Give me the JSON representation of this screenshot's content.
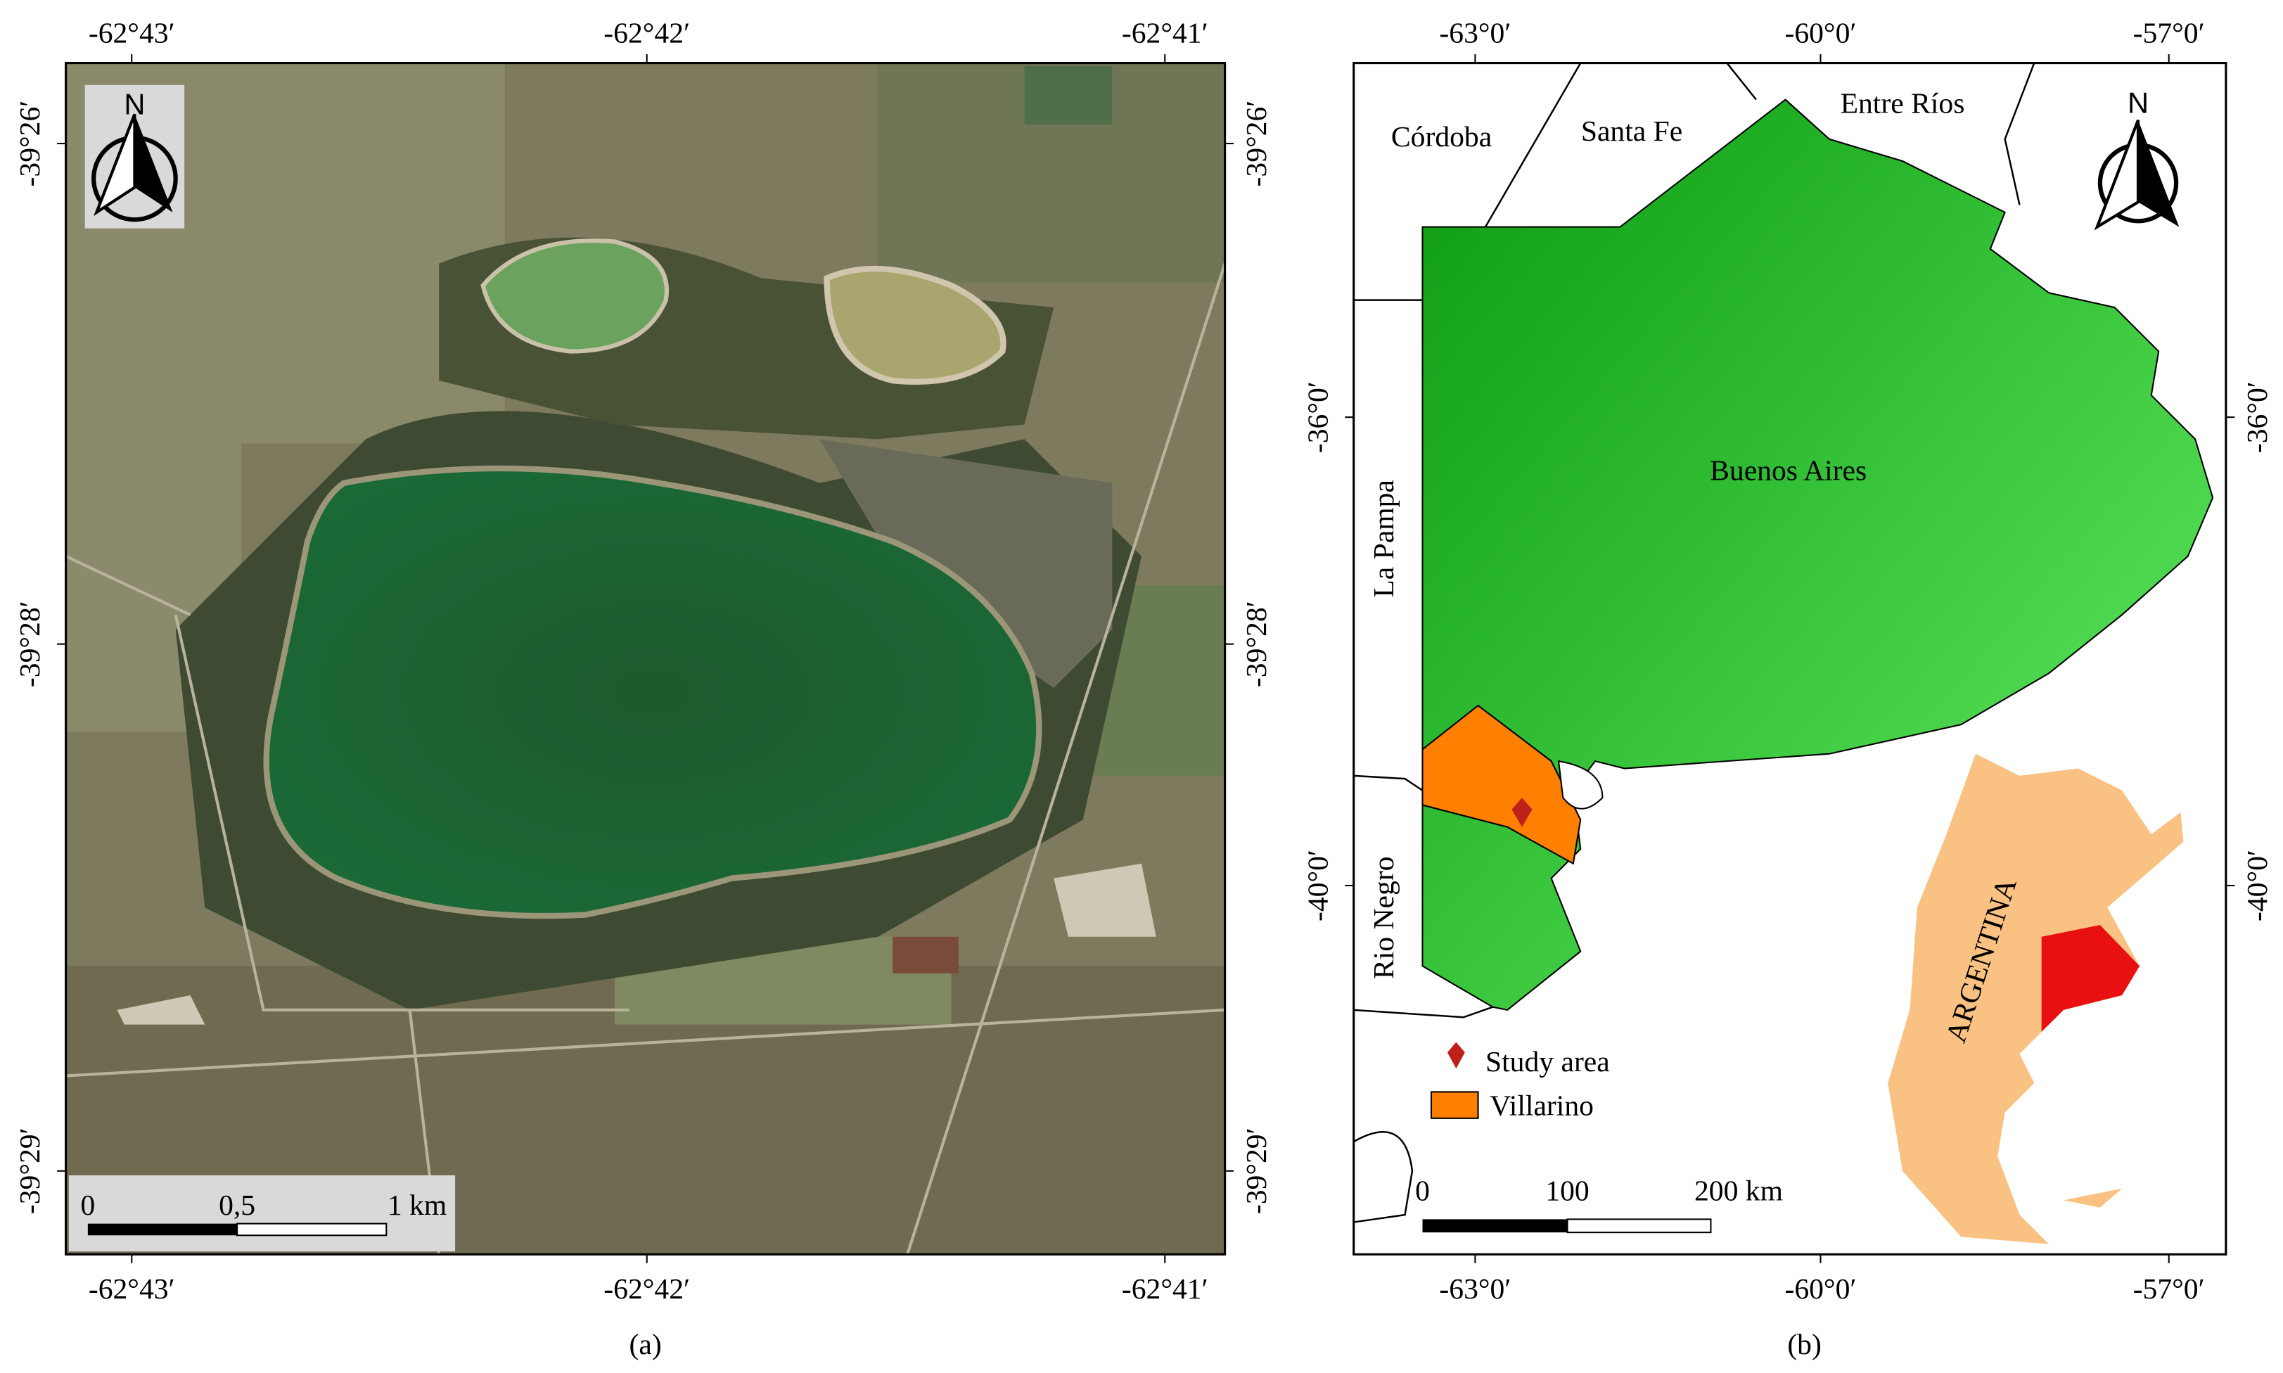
{
  "panel_a": {
    "x_ticks": [
      "-62°43′",
      "-62°42′",
      "-62°41′"
    ],
    "y_ticks": [
      "-39°26′",
      "-39°28′",
      "-39°29′"
    ],
    "north": "N",
    "scale_bar": [
      "0",
      "0,5",
      "1 km"
    ],
    "caption": "(a)"
  },
  "panel_b": {
    "x_ticks": [
      "-63°0′",
      "-60°0′",
      "-57°0′"
    ],
    "y_ticks": [
      "-36°0′",
      "-40°0′"
    ],
    "north": "N",
    "provinces": [
      "Córdoba",
      "Santa Fe",
      "Entre Ríos",
      "La Pampa",
      "Buenos Aires",
      "Rio Negro"
    ],
    "inset": "ARGENTINA",
    "legend": [
      "Study area",
      "Villarino"
    ],
    "scale_bar": [
      "0",
      "100",
      "200 km"
    ],
    "caption": "(b)"
  }
}
